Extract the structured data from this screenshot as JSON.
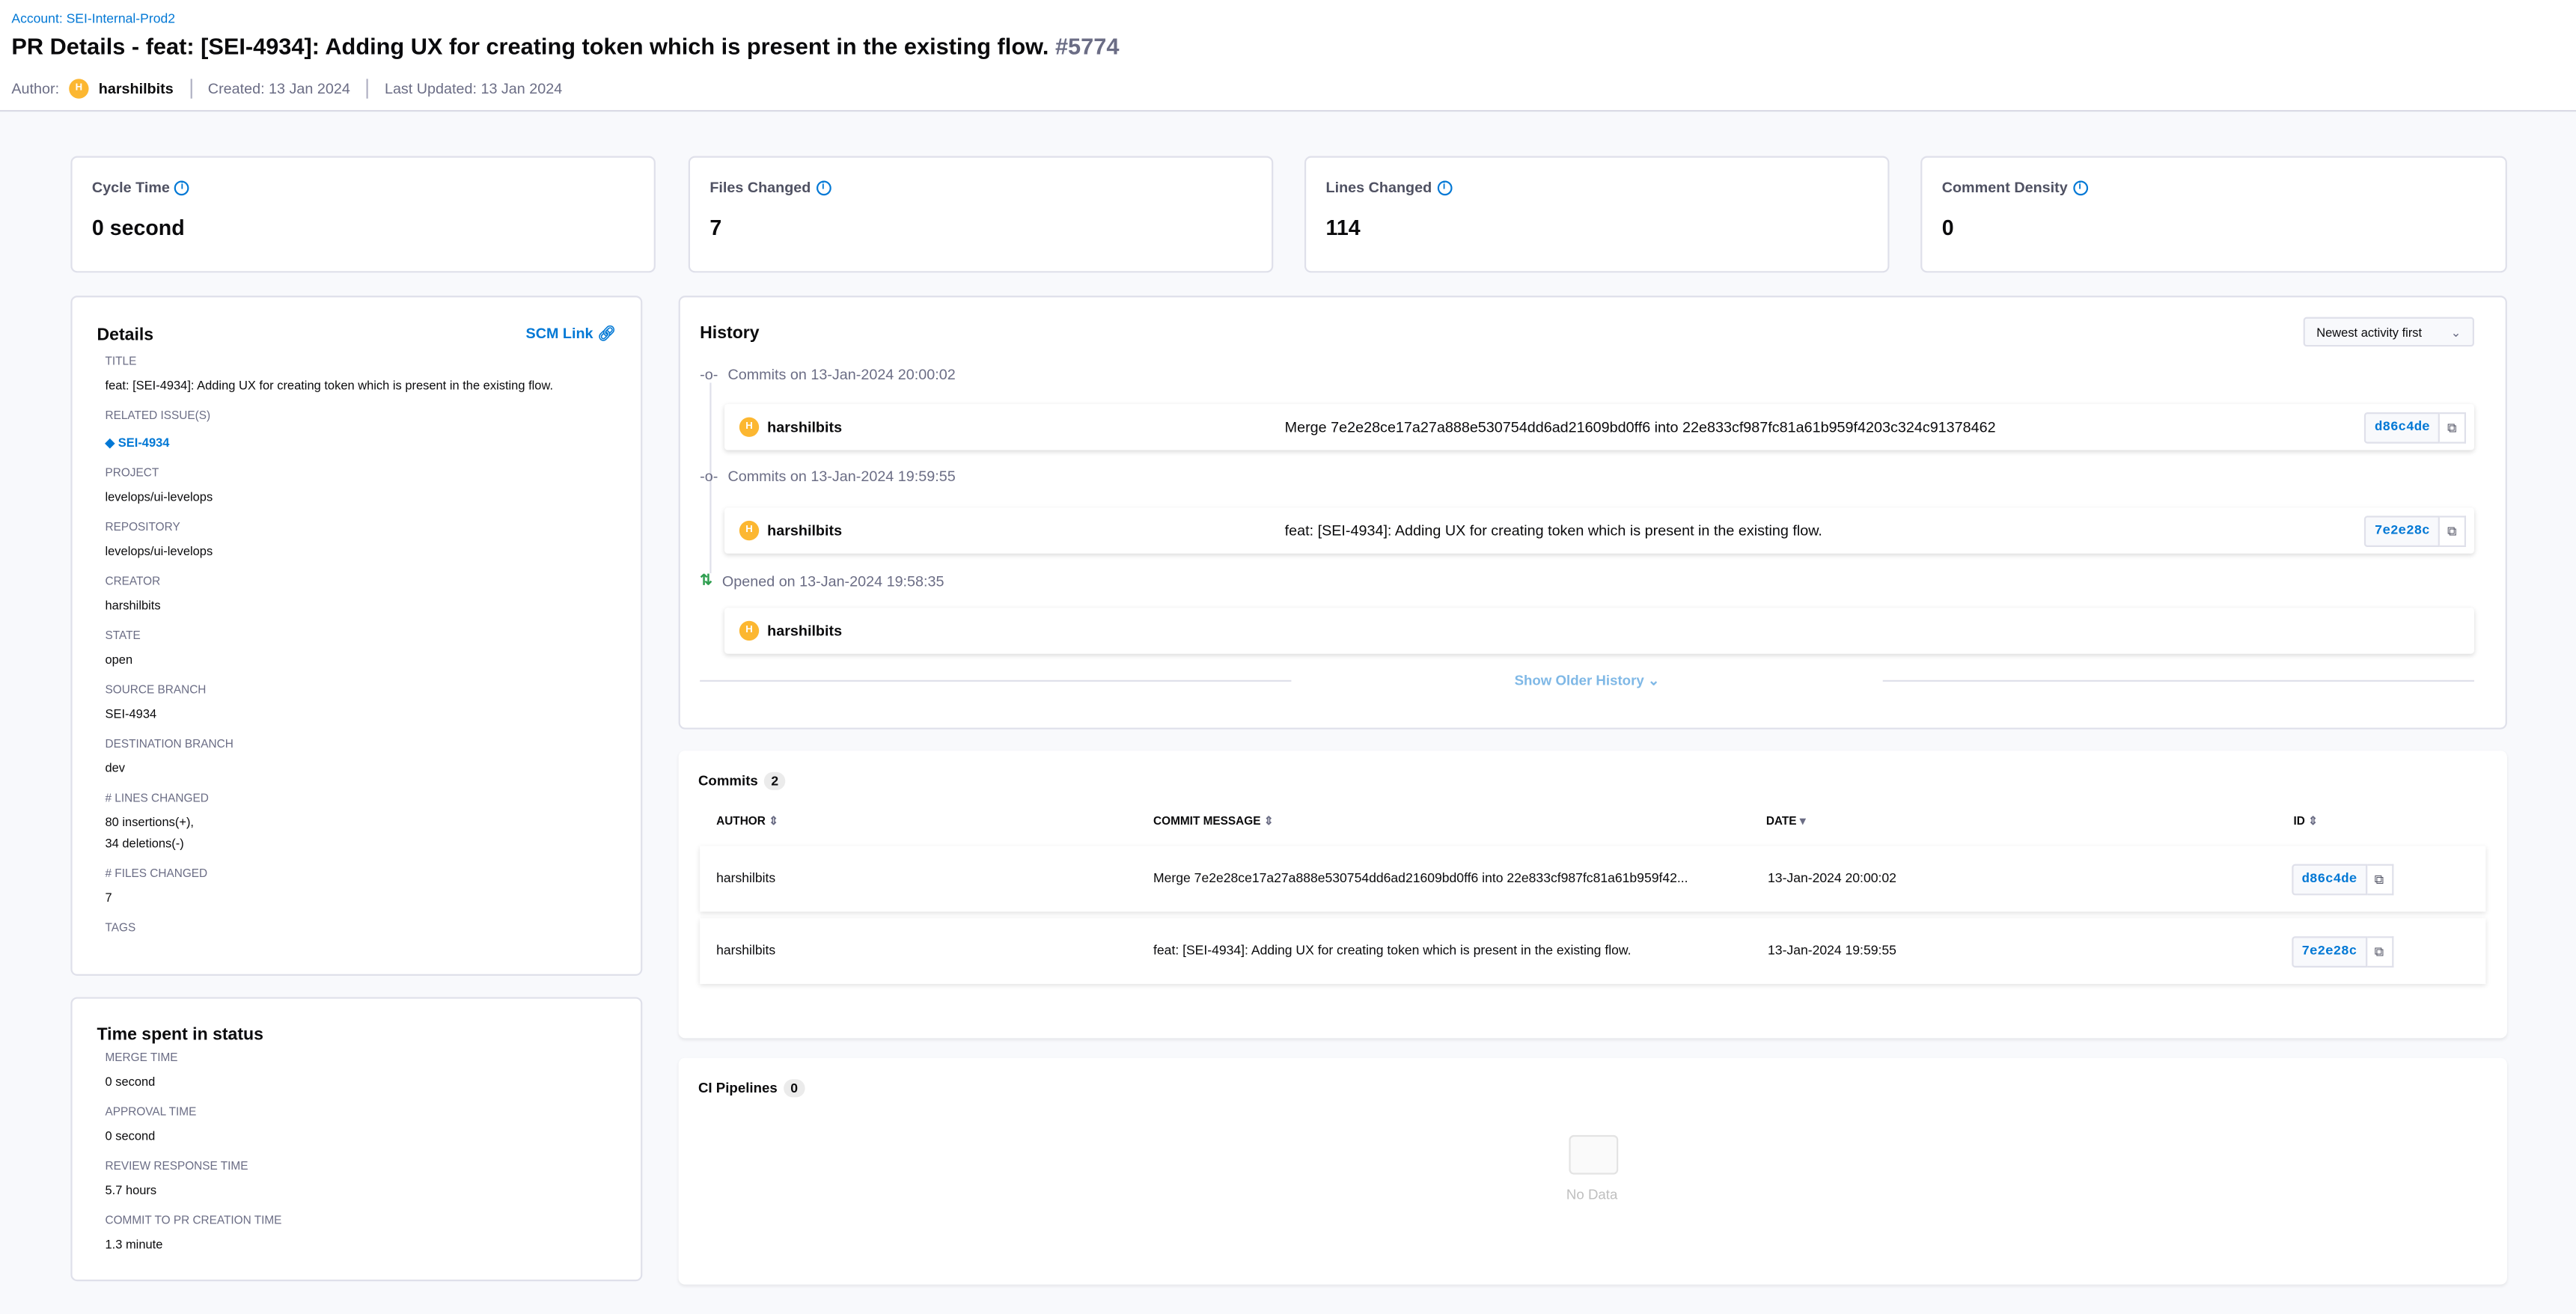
{
  "header": {
    "account": "Account: SEI-Internal-Prod2",
    "title": "PR Details - feat: [SEI-4934]: Adding UX for creating token which is present in the existing flow.",
    "pr_number": "#5774",
    "author_label": "Author:",
    "author_initial": "H",
    "author": "harshilbits",
    "created": "Created: 13 Jan 2024",
    "updated": "Last Updated: 13 Jan 2024"
  },
  "stats": [
    {
      "label": "Cycle Time",
      "value": "0 second"
    },
    {
      "label": "Files Changed",
      "value": "7"
    },
    {
      "label": "Lines Changed",
      "value": "114"
    },
    {
      "label": "Comment Density",
      "value": "0"
    }
  ],
  "details": {
    "heading": "Details",
    "scm_link": "SCM Link",
    "fields": [
      {
        "label": "TITLE",
        "value": "feat: [SEI-4934]: Adding UX for creating token which is present in the existing flow."
      },
      {
        "label": "RELATED ISSUE(S)",
        "value": "SEI-4934"
      },
      {
        "label": "PROJECT",
        "value": "levelops/ui-levelops"
      },
      {
        "label": "REPOSITORY",
        "value": "levelops/ui-levelops"
      },
      {
        "label": "CREATOR",
        "value": "harshilbits"
      },
      {
        "label": "STATE",
        "value": "open"
      },
      {
        "label": "SOURCE BRANCH",
        "value": "SEI-4934"
      },
      {
        "label": "DESTINATION BRANCH",
        "value": "dev"
      },
      {
        "label": "# LINES CHANGED",
        "value": "80 insertions(+),",
        "value2": "34 deletions(-)"
      },
      {
        "label": "# FILES CHANGED",
        "value": "7"
      },
      {
        "label": "TAGS",
        "value": ""
      }
    ]
  },
  "time_spent": {
    "heading": "Time spent in status",
    "fields": [
      {
        "label": "MERGE TIME",
        "value": "0 second"
      },
      {
        "label": "APPROVAL TIME",
        "value": "0 second"
      },
      {
        "label": "REVIEW RESPONSE TIME",
        "value": "5.7 hours"
      },
      {
        "label": "COMMIT TO PR CREATION TIME",
        "value": "1.3 minute"
      }
    ]
  },
  "history": {
    "heading": "History",
    "sort": "Newest activity first",
    "show_older": "Show Older History",
    "events": [
      {
        "label": "Commits on 13-Jan-2024 20:00:02",
        "author": "harshilbits",
        "message": "Merge 7e2e28ce17a27a888e530754dd6ad21609bd0ff6 into 22e833cf987fc81a61b959f4203c324c91378462",
        "sha": "d86c4de"
      },
      {
        "label": "Commits on 13-Jan-2024 19:59:55",
        "author": "harshilbits",
        "message": "feat: [SEI-4934]: Adding UX for creating token which is present in the existing flow.",
        "sha": "7e2e28c"
      },
      {
        "label": "Opened on 13-Jan-2024 19:58:35",
        "author": "harshilbits",
        "message": "",
        "sha": ""
      }
    ]
  },
  "commits": {
    "heading": "Commits",
    "count": "2",
    "columns": [
      "AUTHOR",
      "COMMIT MESSAGE",
      "DATE",
      "ID"
    ],
    "rows": [
      {
        "author": "harshilbits",
        "message": "Merge 7e2e28ce17a27a888e530754dd6ad21609bd0ff6 into 22e833cf987fc81a61b959f42...",
        "date": "13-Jan-2024 20:00:02",
        "id": "d86c4de"
      },
      {
        "author": "harshilbits",
        "message": "feat: [SEI-4934]: Adding UX for creating token which is present in the existing flow.",
        "date": "13-Jan-2024 19:59:55",
        "id": "7e2e28c"
      }
    ]
  },
  "ci": {
    "heading": "CI Pipelines",
    "count": "0",
    "empty": "No Data"
  },
  "colors": {
    "accent": "#0278d5",
    "avatar": "#fcb731",
    "opened": "#2e9e4f"
  }
}
